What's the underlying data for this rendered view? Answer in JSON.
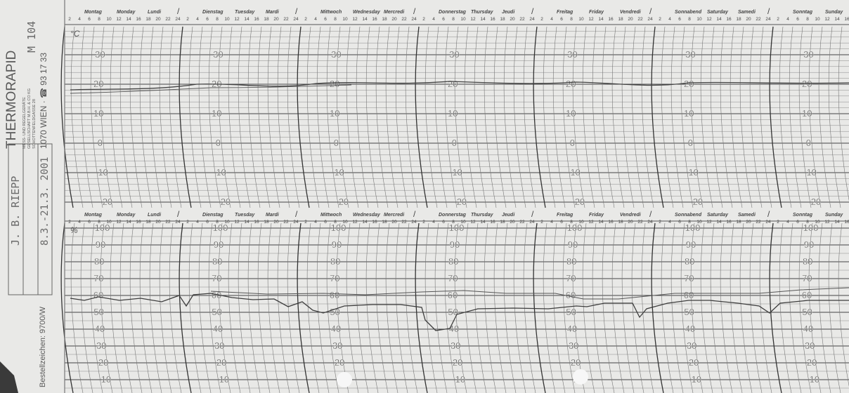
{
  "sidebar": {
    "brand": "THERMORAPID",
    "lines": [
      "MESS- UND REGELGERÄTE",
      "GESELLSCHAFT M.B.H. & CO KG",
      "SCHOTTENFELDGASSE 28"
    ],
    "address": "1070 WIEN · ☎ 93 17 33",
    "order_code": "Bestellzeichen: 9700/W",
    "handwritten_code": "M 104",
    "handwritten_name": "J. B. RIEPP",
    "handwritten_period": "8.3.-21.3. 2001"
  },
  "days": [
    {
      "de": "Montag",
      "en": "Monday",
      "fr": "Lundi"
    },
    {
      "de": "Dienstag",
      "en": "Tuesday",
      "fr": "Mardi"
    },
    {
      "de": "Mittwoch",
      "en": "Wednesday",
      "fr": "Mercredi"
    },
    {
      "de": "Donnerstag",
      "en": "Thursday",
      "fr": "Jeudi"
    },
    {
      "de": "Freitag",
      "en": "Friday",
      "fr": "Vendredi"
    },
    {
      "de": "Sonnabend",
      "en": "Saturday",
      "fr": "Samedi"
    },
    {
      "de": "Sonntag",
      "en": "Sunday",
      "fr": "Dimanche"
    }
  ],
  "hours": [
    "2",
    "4",
    "6",
    "8",
    "10",
    "12",
    "14",
    "16",
    "18",
    "20",
    "22",
    "24"
  ],
  "temperature_panel": {
    "unit": "°C",
    "scale": [
      "30",
      "20",
      "10",
      "0",
      "10",
      "20"
    ]
  },
  "humidity_panel": {
    "unit": "%",
    "scale": [
      "100",
      "90",
      "80",
      "70",
      "60",
      "50",
      "40",
      "30",
      "20",
      "10"
    ]
  }
}
